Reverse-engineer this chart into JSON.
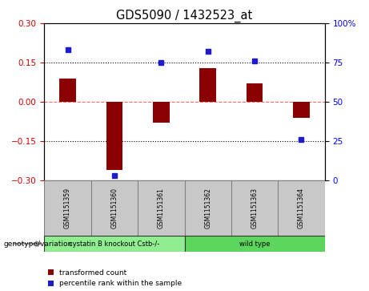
{
  "title": "GDS5090 / 1432523_at",
  "samples": [
    "GSM1151359",
    "GSM1151360",
    "GSM1151361",
    "GSM1151362",
    "GSM1151363",
    "GSM1151364"
  ],
  "red_values": [
    0.09,
    -0.26,
    -0.08,
    0.13,
    0.07,
    -0.06
  ],
  "blue_values_pct": [
    83,
    3,
    75,
    82,
    76,
    26
  ],
  "groups": [
    {
      "label": "cystatin B knockout Cstb-/-",
      "indices": [
        0,
        1,
        2
      ],
      "color": "#90EE90"
    },
    {
      "label": "wild type",
      "indices": [
        3,
        4,
        5
      ],
      "color": "#5CD65C"
    }
  ],
  "ylim": [
    -0.3,
    0.3
  ],
  "y2lim": [
    0,
    100
  ],
  "yticks": [
    -0.3,
    -0.15,
    0,
    0.15,
    0.3
  ],
  "y2ticks": [
    0,
    25,
    50,
    75,
    100
  ],
  "hlines": [
    0.15,
    -0.15
  ],
  "red_color": "#8B0000",
  "blue_color": "#1C1CCD",
  "dashed_zero_color": "#FF6666",
  "legend_red": "transformed count",
  "legend_blue": "percentile rank within the sample",
  "genotype_label": "genotype/variation",
  "bar_width": 0.35,
  "sample_box_color": "#C8C8C8",
  "plot_bg": "#FFFFFF"
}
